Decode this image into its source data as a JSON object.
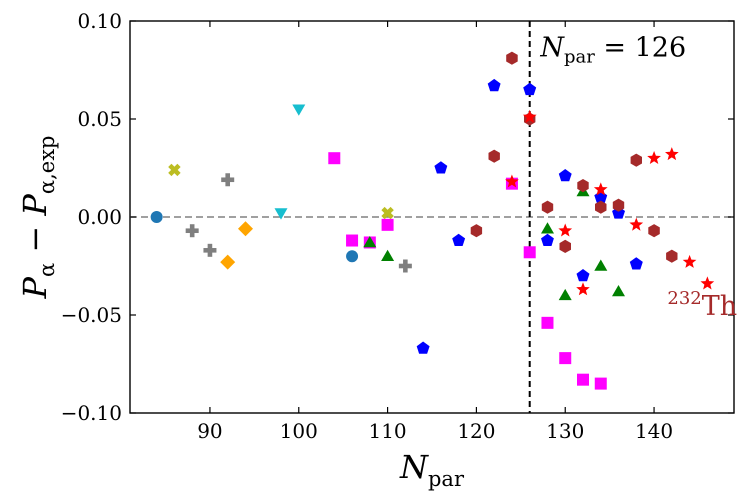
{
  "chart_data": {
    "type": "scatter",
    "xlabel": "N",
    "xlabel_sub": "par",
    "ylabel_parts": [
      "P",
      "α",
      " − P",
      "α,exp"
    ],
    "xlim": [
      81,
      149
    ],
    "ylim": [
      -0.1,
      0.1
    ],
    "xticks": [
      90,
      100,
      110,
      120,
      130,
      140
    ],
    "xtick_labels": [
      "90",
      "100",
      "110",
      "120",
      "130",
      "140"
    ],
    "yticks": [
      -0.1,
      -0.05,
      0.0,
      0.05,
      0.1
    ],
    "ytick_labels": [
      "−0.10",
      "−0.05",
      "0.00",
      "0.05",
      "0.10"
    ],
    "grid": false,
    "reference_lines": [
      {
        "orientation": "horizontal",
        "value": 0.0,
        "style": "dashed",
        "color": "#808080"
      },
      {
        "orientation": "vertical",
        "value": 126,
        "style": "dashed",
        "color": "#000000"
      }
    ],
    "annotations": [
      {
        "text_main": "N",
        "text_sub": "par",
        "text_rest": " = 126",
        "x": 127.2,
        "y": 0.082,
        "color": "#000000"
      },
      {
        "text_sup": "232",
        "text_main": "Th",
        "x": 141.5,
        "y": -0.05,
        "color": "#a52a2a"
      }
    ],
    "series": [
      {
        "marker": "circle",
        "color": "#1f77b4",
        "points": [
          [
            84,
            0.0
          ],
          [
            106,
            -0.02
          ]
        ]
      },
      {
        "marker": "cross",
        "color": "#bcbd22",
        "points": [
          [
            86,
            0.024
          ],
          [
            110,
            0.002
          ]
        ]
      },
      {
        "marker": "plus",
        "color": "#7f7f7f",
        "points": [
          [
            88,
            -0.007
          ],
          [
            90,
            -0.017
          ],
          [
            92,
            0.019
          ],
          [
            112,
            -0.025
          ]
        ]
      },
      {
        "marker": "diamond",
        "color": "#ffa500",
        "points": [
          [
            92,
            -0.023
          ],
          [
            94,
            -0.006
          ]
        ]
      },
      {
        "marker": "triangle-down",
        "color": "#17becf",
        "points": [
          [
            98,
            0.002
          ],
          [
            100,
            0.055
          ]
        ]
      },
      {
        "marker": "square",
        "color": "#ff00ff",
        "points": [
          [
            104,
            0.03
          ],
          [
            106,
            -0.012
          ],
          [
            108,
            -0.013
          ],
          [
            110,
            -0.004
          ],
          [
            124,
            0.017
          ],
          [
            126,
            -0.018
          ],
          [
            128,
            -0.054
          ],
          [
            130,
            -0.072
          ],
          [
            132,
            -0.083
          ],
          [
            134,
            -0.085
          ]
        ]
      },
      {
        "marker": "triangle-up",
        "color": "#008000",
        "points": [
          [
            108,
            -0.013
          ],
          [
            110,
            -0.02
          ],
          [
            128,
            -0.006
          ],
          [
            130,
            -0.04
          ],
          [
            132,
            0.013
          ],
          [
            134,
            -0.025
          ],
          [
            136,
            -0.038
          ]
        ]
      },
      {
        "marker": "pentagon",
        "color": "#0000ff",
        "points": [
          [
            114,
            -0.067
          ],
          [
            116,
            0.025
          ],
          [
            118,
            -0.012
          ],
          [
            122,
            0.067
          ],
          [
            126,
            0.065
          ],
          [
            128,
            -0.012
          ],
          [
            130,
            0.021
          ],
          [
            132,
            -0.03
          ],
          [
            134,
            0.01
          ],
          [
            136,
            0.002
          ],
          [
            138,
            -0.024
          ]
        ]
      },
      {
        "marker": "hexagon",
        "color": "#a52a2a",
        "points": [
          [
            120,
            -0.007
          ],
          [
            122,
            0.031
          ],
          [
            124,
            0.081
          ],
          [
            126,
            0.05
          ],
          [
            128,
            0.005
          ],
          [
            130,
            -0.015
          ],
          [
            132,
            0.016
          ],
          [
            134,
            0.005
          ],
          [
            136,
            0.006
          ],
          [
            138,
            0.029
          ],
          [
            140,
            -0.007
          ],
          [
            142,
            -0.02
          ]
        ]
      },
      {
        "marker": "star",
        "color": "#ff0000",
        "points": [
          [
            124,
            0.018
          ],
          [
            126,
            0.051
          ],
          [
            130,
            -0.007
          ],
          [
            132,
            -0.037
          ],
          [
            134,
            0.014
          ],
          [
            138,
            -0.004
          ],
          [
            140,
            0.03
          ],
          [
            142,
            0.032
          ],
          [
            144,
            -0.023
          ],
          [
            146,
            -0.034
          ]
        ]
      }
    ]
  }
}
